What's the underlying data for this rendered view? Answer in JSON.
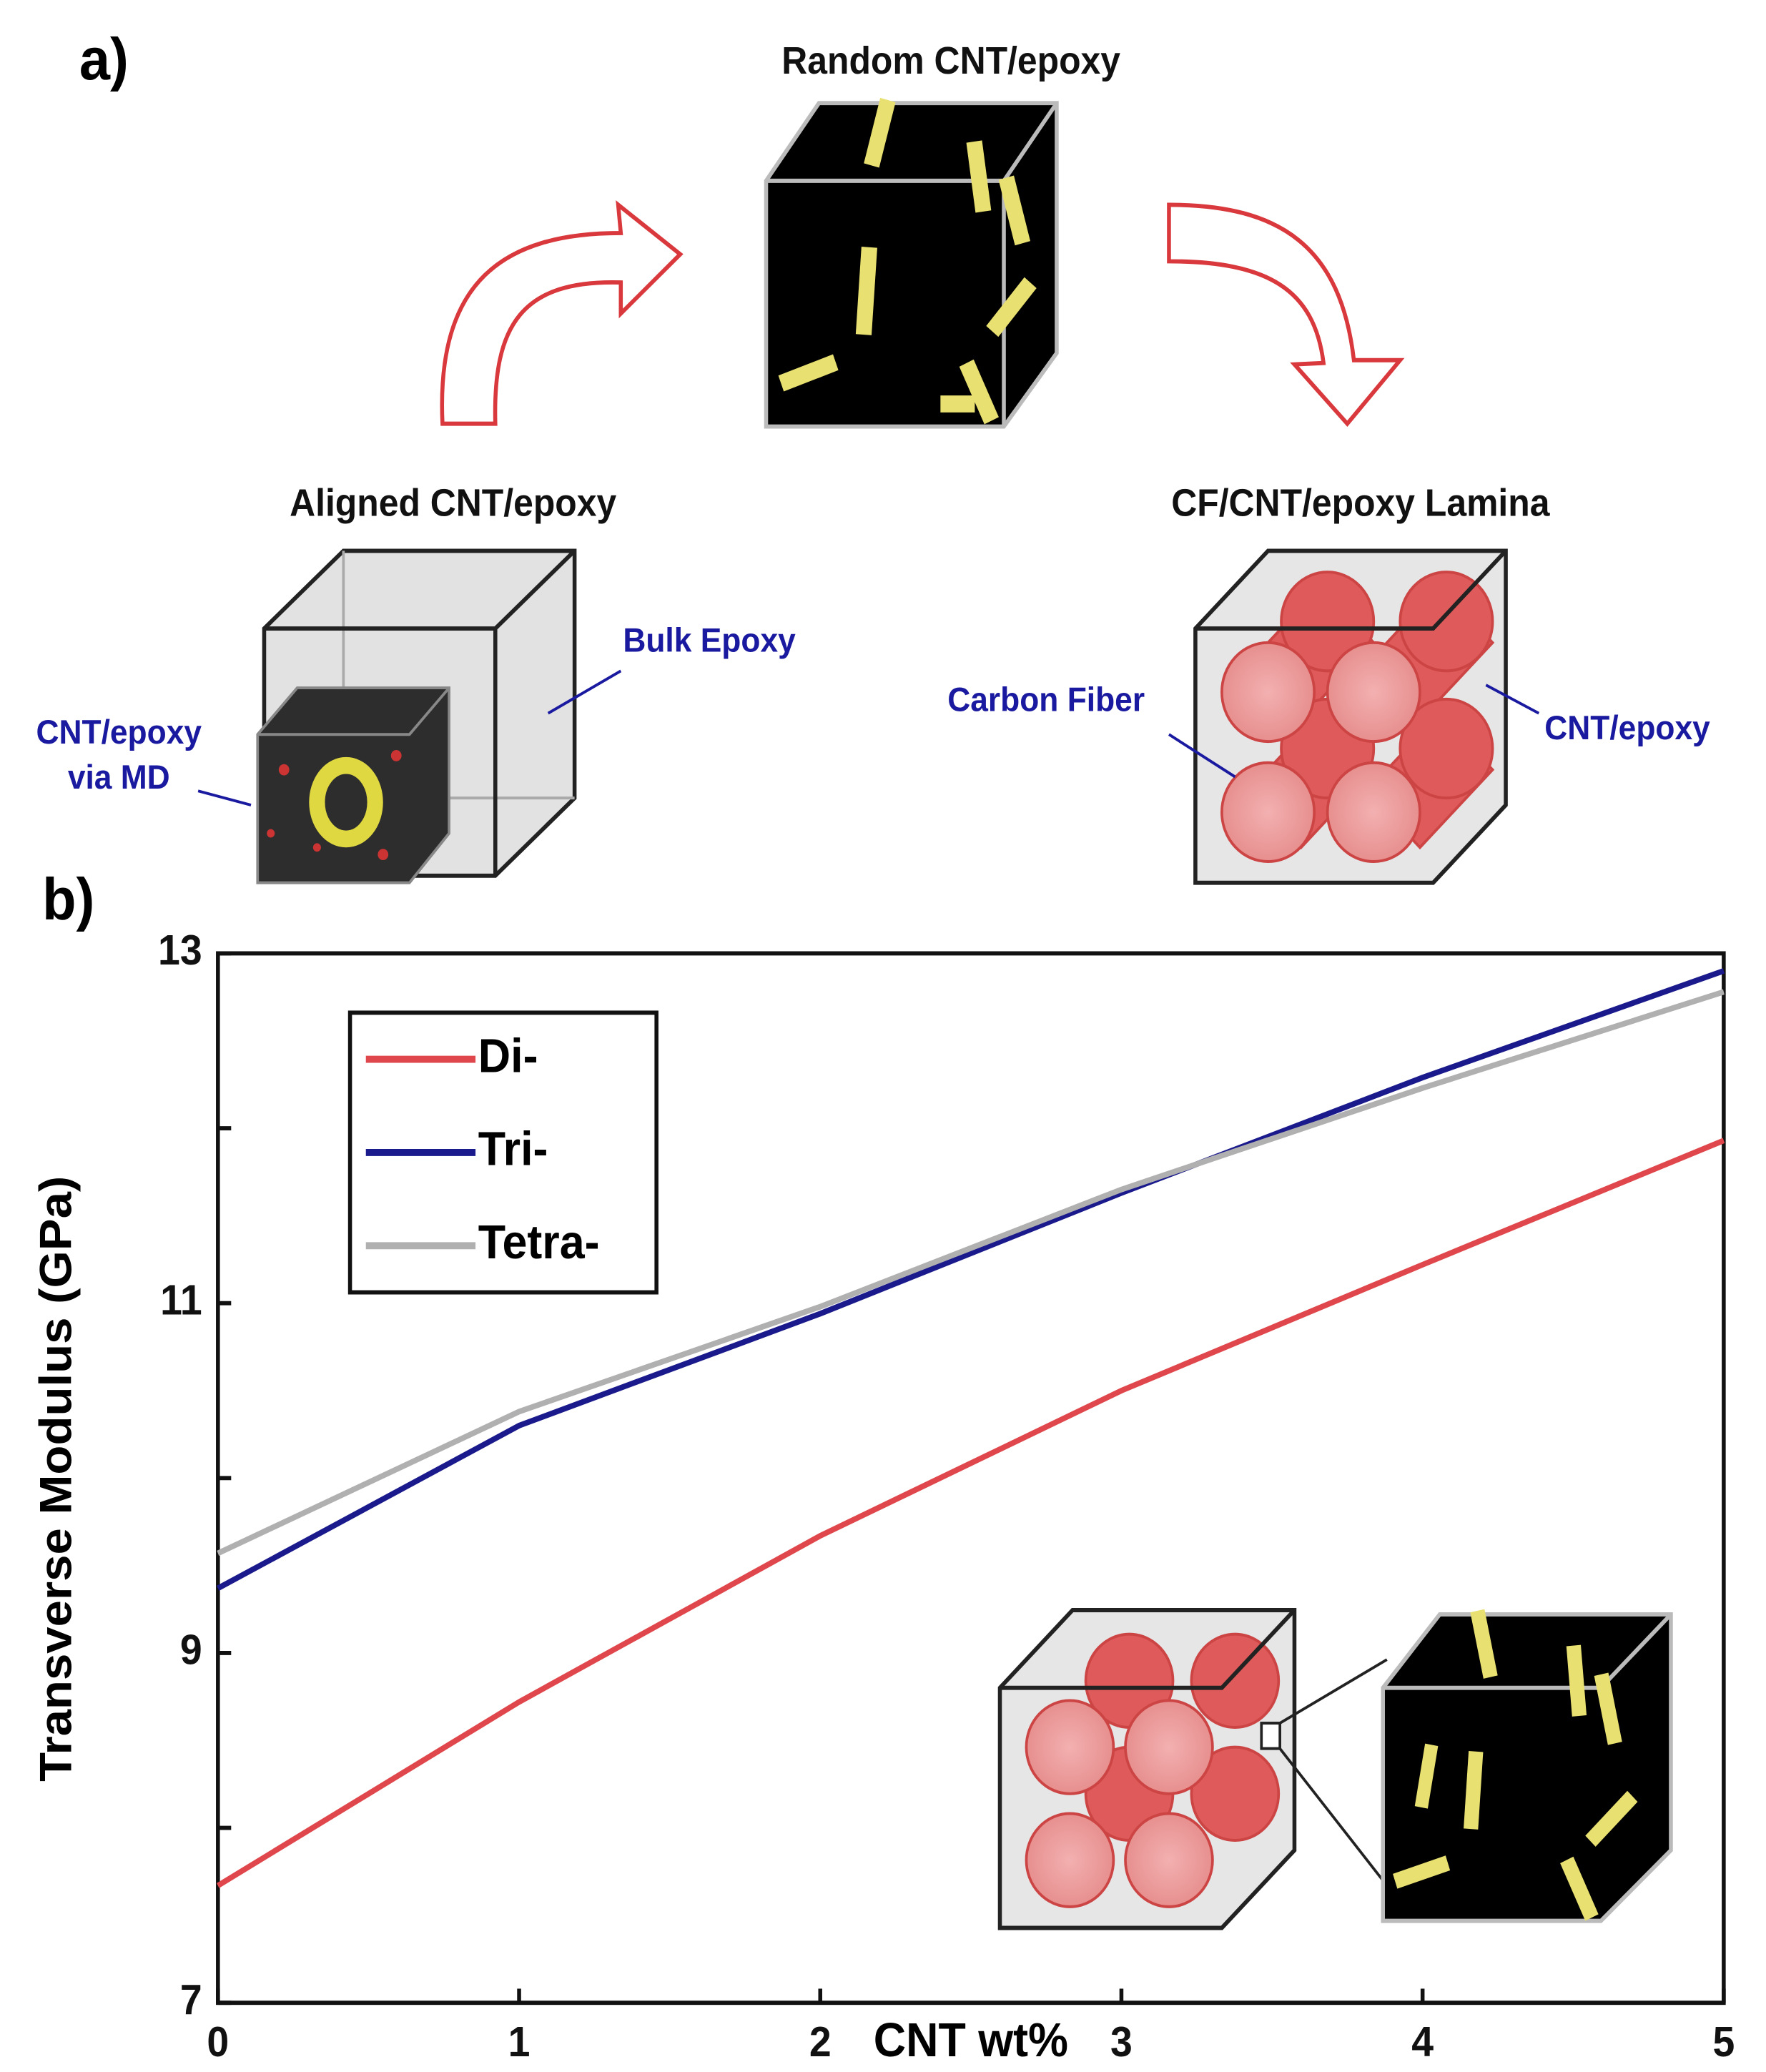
{
  "figure": {
    "panel_a": "a)",
    "panel_b": "b)",
    "random": "Random CNT/epoxy",
    "aligned": "Aligned CNT/epoxy",
    "lamina": "CF/CNT/epoxy Lamina",
    "bulk_epoxy": "Bulk Epoxy",
    "cnt_md": [
      "CNT/epoxy",
      "via MD"
    ],
    "carbon_fiber": "Carbon Fiber",
    "cnt_epoxy": "CNT/epoxy"
  },
  "chart_data": {
    "type": "line",
    "x_label": "CNT wt%",
    "y_label": "Transverse Modulus (GPa)",
    "x": [
      0,
      1,
      2,
      3,
      4,
      5
    ],
    "series": [
      {
        "name": "Di-",
        "color": "#e0474c",
        "values": [
          7.67,
          8.72,
          9.67,
          10.5,
          11.22,
          11.93
        ]
      },
      {
        "name": "Tri-",
        "color": "#1a1a8c",
        "values": [
          9.37,
          10.3,
          10.94,
          11.63,
          12.29,
          12.9
        ]
      },
      {
        "name": "Tetra-",
        "color": "#b0b0b0",
        "values": [
          9.57,
          10.38,
          10.98,
          11.65,
          12.23,
          12.78
        ]
      }
    ],
    "xlim": [
      0,
      5
    ],
    "xticks": [
      0,
      1,
      2,
      3,
      4,
      5
    ],
    "ylim": [
      7,
      13
    ],
    "yticks": [
      7,
      9,
      11,
      13
    ],
    "yminorticks": [
      8,
      10,
      12
    ],
    "legend": "upper left"
  }
}
